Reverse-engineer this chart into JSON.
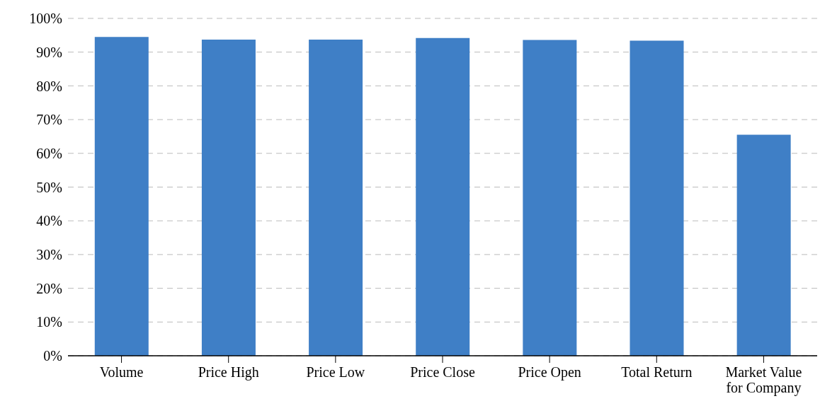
{
  "chart_data": {
    "type": "bar",
    "categories": [
      "Volume",
      "Price High",
      "Price Low",
      "Price Close",
      "Price Open",
      "Total Return",
      "Market Value for Company"
    ],
    "values": [
      94.5,
      93.7,
      93.7,
      94.2,
      93.6,
      93.4,
      65.5
    ],
    "color": "#3f7fc6",
    "ylim": [
      0,
      100
    ],
    "yticks": [
      {
        "value": 0,
        "label": "0%"
      },
      {
        "value": 10,
        "label": "10%"
      },
      {
        "value": 20,
        "label": "20%"
      },
      {
        "value": 30,
        "label": "30%"
      },
      {
        "value": 40,
        "label": "40%"
      },
      {
        "value": 50,
        "label": "50%"
      },
      {
        "value": 60,
        "label": "60%"
      },
      {
        "value": 70,
        "label": "70%"
      },
      {
        "value": 80,
        "label": "80%"
      },
      {
        "value": 90,
        "label": "90%"
      },
      {
        "value": 100,
        "label": "100%"
      }
    ],
    "grid": "y",
    "legend": false
  }
}
